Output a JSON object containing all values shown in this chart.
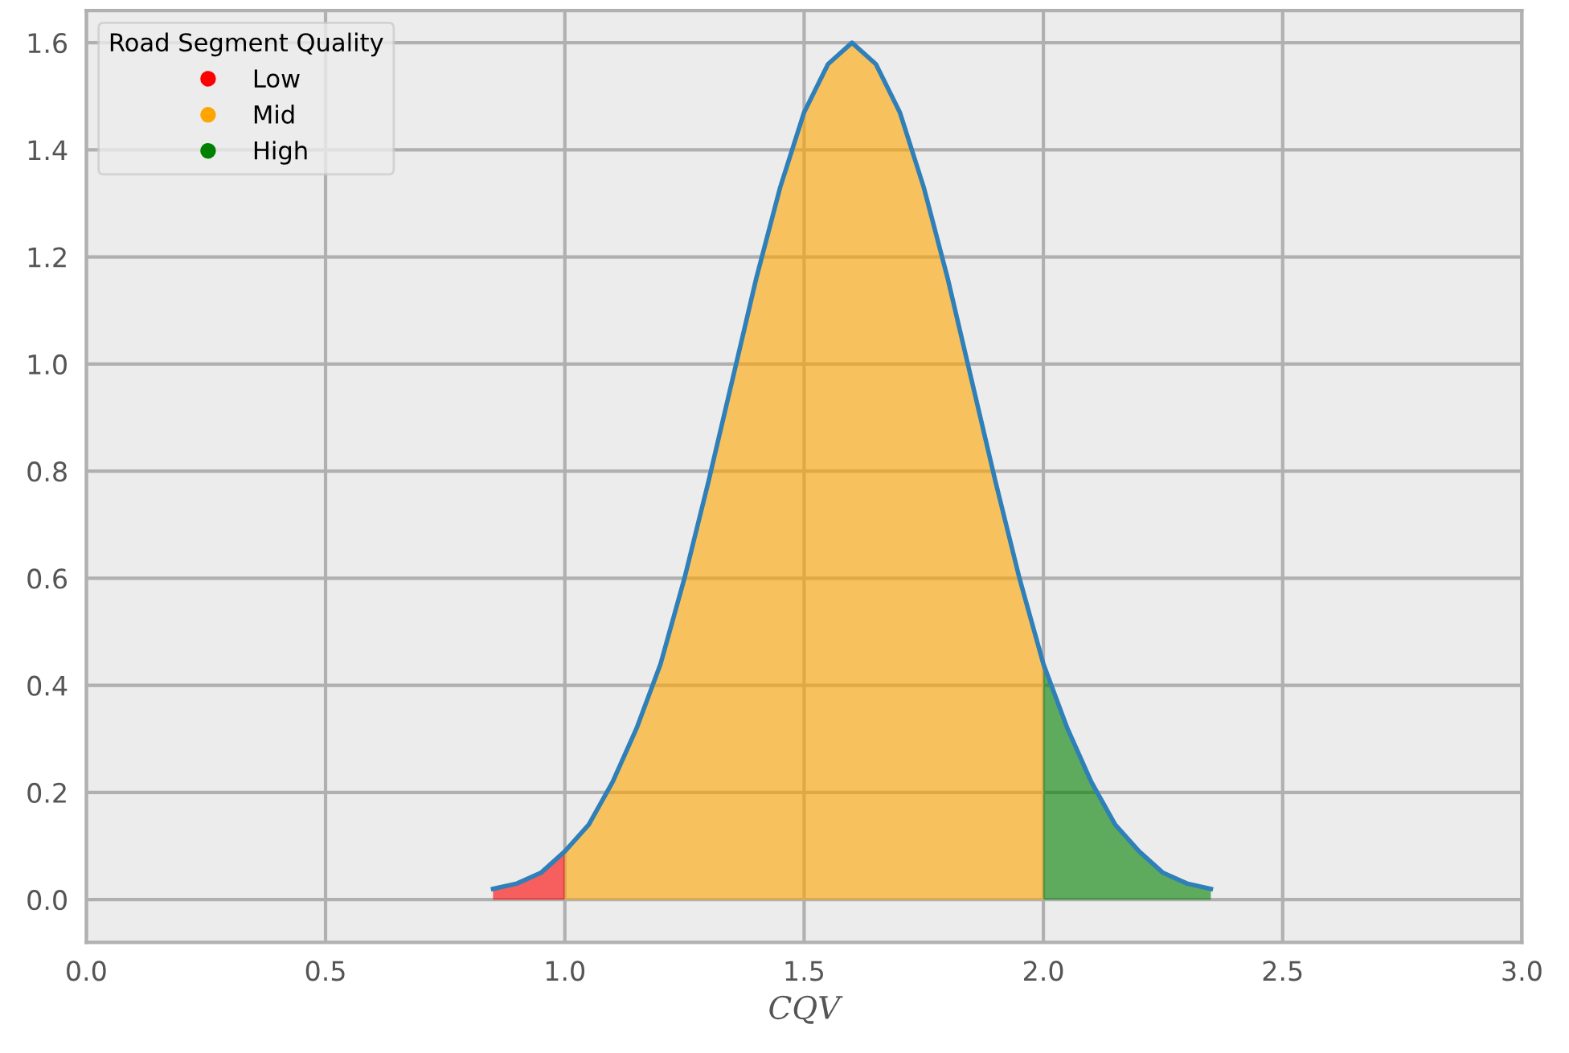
{
  "chart_data": {
    "type": "area",
    "xlabel": "CQV",
    "legend_title": "Road Segment Quality",
    "legend": "top left",
    "grid": true,
    "xlim": [
      0,
      3
    ],
    "xticks": [
      {
        "value": 0,
        "label": "0.0"
      },
      0.5,
      {
        "value": 1,
        "label": "1.0"
      },
      1.5,
      {
        "value": 2,
        "label": "2.0"
      },
      2.5,
      {
        "value": 3,
        "label": "3.0"
      }
    ],
    "ylim": [
      -0.08,
      1.66
    ],
    "yticks": [
      {
        "value": 0,
        "label": "0.0"
      },
      0.2,
      0.4,
      0.6,
      0.8,
      {
        "value": 1,
        "label": "1.0"
      },
      1.2,
      1.4,
      1.6
    ],
    "series": [
      {
        "name": "Low",
        "color": "#ff0000",
        "x": [
          0.85,
          0.9,
          0.95,
          1.0
        ],
        "values": [
          0.02,
          0.03,
          0.05,
          0.09
        ]
      },
      {
        "name": "Mid",
        "color": "#ffa500",
        "x": [
          1.0,
          1.05,
          1.1,
          1.15,
          1.2,
          1.25,
          1.3,
          1.35,
          1.4,
          1.45,
          1.5,
          1.55,
          1.6,
          1.65,
          1.7,
          1.75,
          1.8,
          1.85,
          1.9,
          1.95,
          2.0
        ],
        "values": [
          0.09,
          0.14,
          0.22,
          0.32,
          0.44,
          0.6,
          0.78,
          0.97,
          1.16,
          1.33,
          1.47,
          1.56,
          1.6,
          1.56,
          1.47,
          1.33,
          1.16,
          0.97,
          0.78,
          0.6,
          0.44
        ]
      },
      {
        "name": "High",
        "color": "#008000",
        "x": [
          2.0,
          2.05,
          2.1,
          2.15,
          2.2,
          2.25,
          2.3,
          2.35
        ],
        "values": [
          0.44,
          0.32,
          0.22,
          0.14,
          0.09,
          0.05,
          0.03,
          0.02
        ]
      },
      {
        "color": "#2f7fb8",
        "type": "line",
        "x": [
          0.85,
          0.9,
          0.95,
          1.0,
          1.05,
          1.1,
          1.15,
          1.2,
          1.25,
          1.3,
          1.35,
          1.4,
          1.45,
          1.5,
          1.55,
          1.6,
          1.65,
          1.7,
          1.75,
          1.8,
          1.85,
          1.9,
          1.95,
          2.0,
          2.05,
          2.1,
          2.15,
          2.2,
          2.25,
          2.3,
          2.35
        ],
        "values": [
          0.02,
          0.03,
          0.05,
          0.09,
          0.14,
          0.22,
          0.32,
          0.44,
          0.6,
          0.78,
          0.97,
          1.16,
          1.33,
          1.47,
          1.56,
          1.6,
          1.56,
          1.47,
          1.33,
          1.16,
          0.97,
          0.78,
          0.6,
          0.44,
          0.32,
          0.22,
          0.14,
          0.09,
          0.05,
          0.03,
          0.02
        ]
      }
    ]
  }
}
